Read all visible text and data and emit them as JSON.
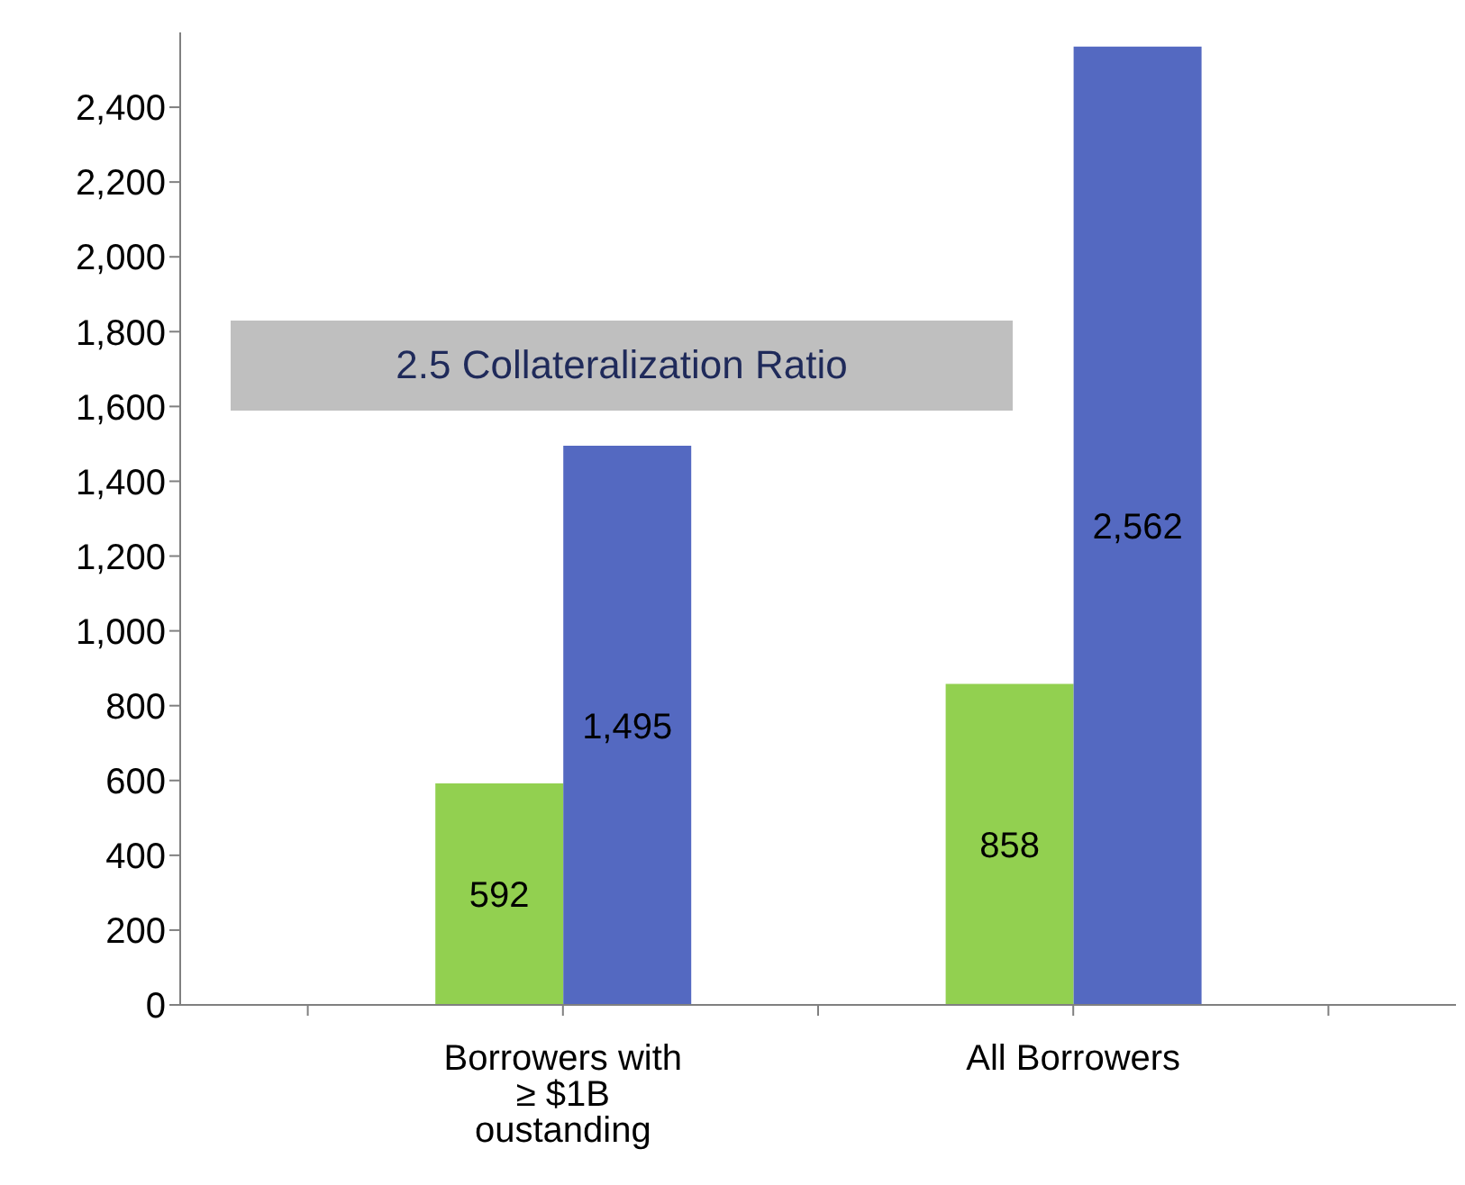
{
  "chart_data": {
    "type": "bar",
    "categories": [
      null,
      "Borrowers with ≥ $1B oustanding",
      null,
      "All Borrowers",
      null
    ],
    "series": [
      {
        "color": "#92d050",
        "values": [
          null,
          592,
          null,
          858,
          null
        ],
        "value_labels": [
          null,
          "592",
          null,
          "858",
          null
        ]
      },
      {
        "color": "#5469c1",
        "values": [
          null,
          1495,
          null,
          2562,
          null
        ],
        "value_labels": [
          null,
          "1,495",
          null,
          "2,562",
          null
        ]
      }
    ],
    "ylim": [
      0,
      2600
    ],
    "yticks": [
      0,
      200,
      400,
      600,
      800,
      {
        "value": 1000,
        "label": "1,000"
      },
      {
        "value": 1200,
        "label": "1,200"
      },
      {
        "value": 1400,
        "label": "1,400"
      },
      {
        "value": 1600,
        "label": "1,600"
      },
      {
        "value": 1800,
        "label": "1,800"
      },
      {
        "value": 2000,
        "label": "2,000"
      },
      {
        "value": 2200,
        "label": "2,200"
      },
      {
        "value": 2400,
        "label": "2,400"
      }
    ],
    "grid": false,
    "legend": false,
    "annotations": [
      "2.5 Collateralization Ratio"
    ]
  }
}
